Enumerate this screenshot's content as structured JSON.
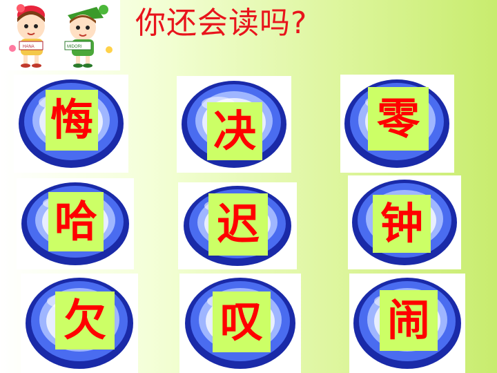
{
  "title": "你还会读吗?",
  "logo": {
    "left_badge": "HANA",
    "right_badge": "MIDORI"
  },
  "colors": {
    "accent": "#ff0000",
    "box": "#ccff66",
    "button": "#2b3fd6"
  },
  "characters": [
    {
      "char": "悔"
    },
    {
      "char": "决"
    },
    {
      "char": "零"
    },
    {
      "char": "哈"
    },
    {
      "char": "迟"
    },
    {
      "char": "钟"
    },
    {
      "char": "欠"
    },
    {
      "char": "叹"
    },
    {
      "char": "闹"
    }
  ]
}
